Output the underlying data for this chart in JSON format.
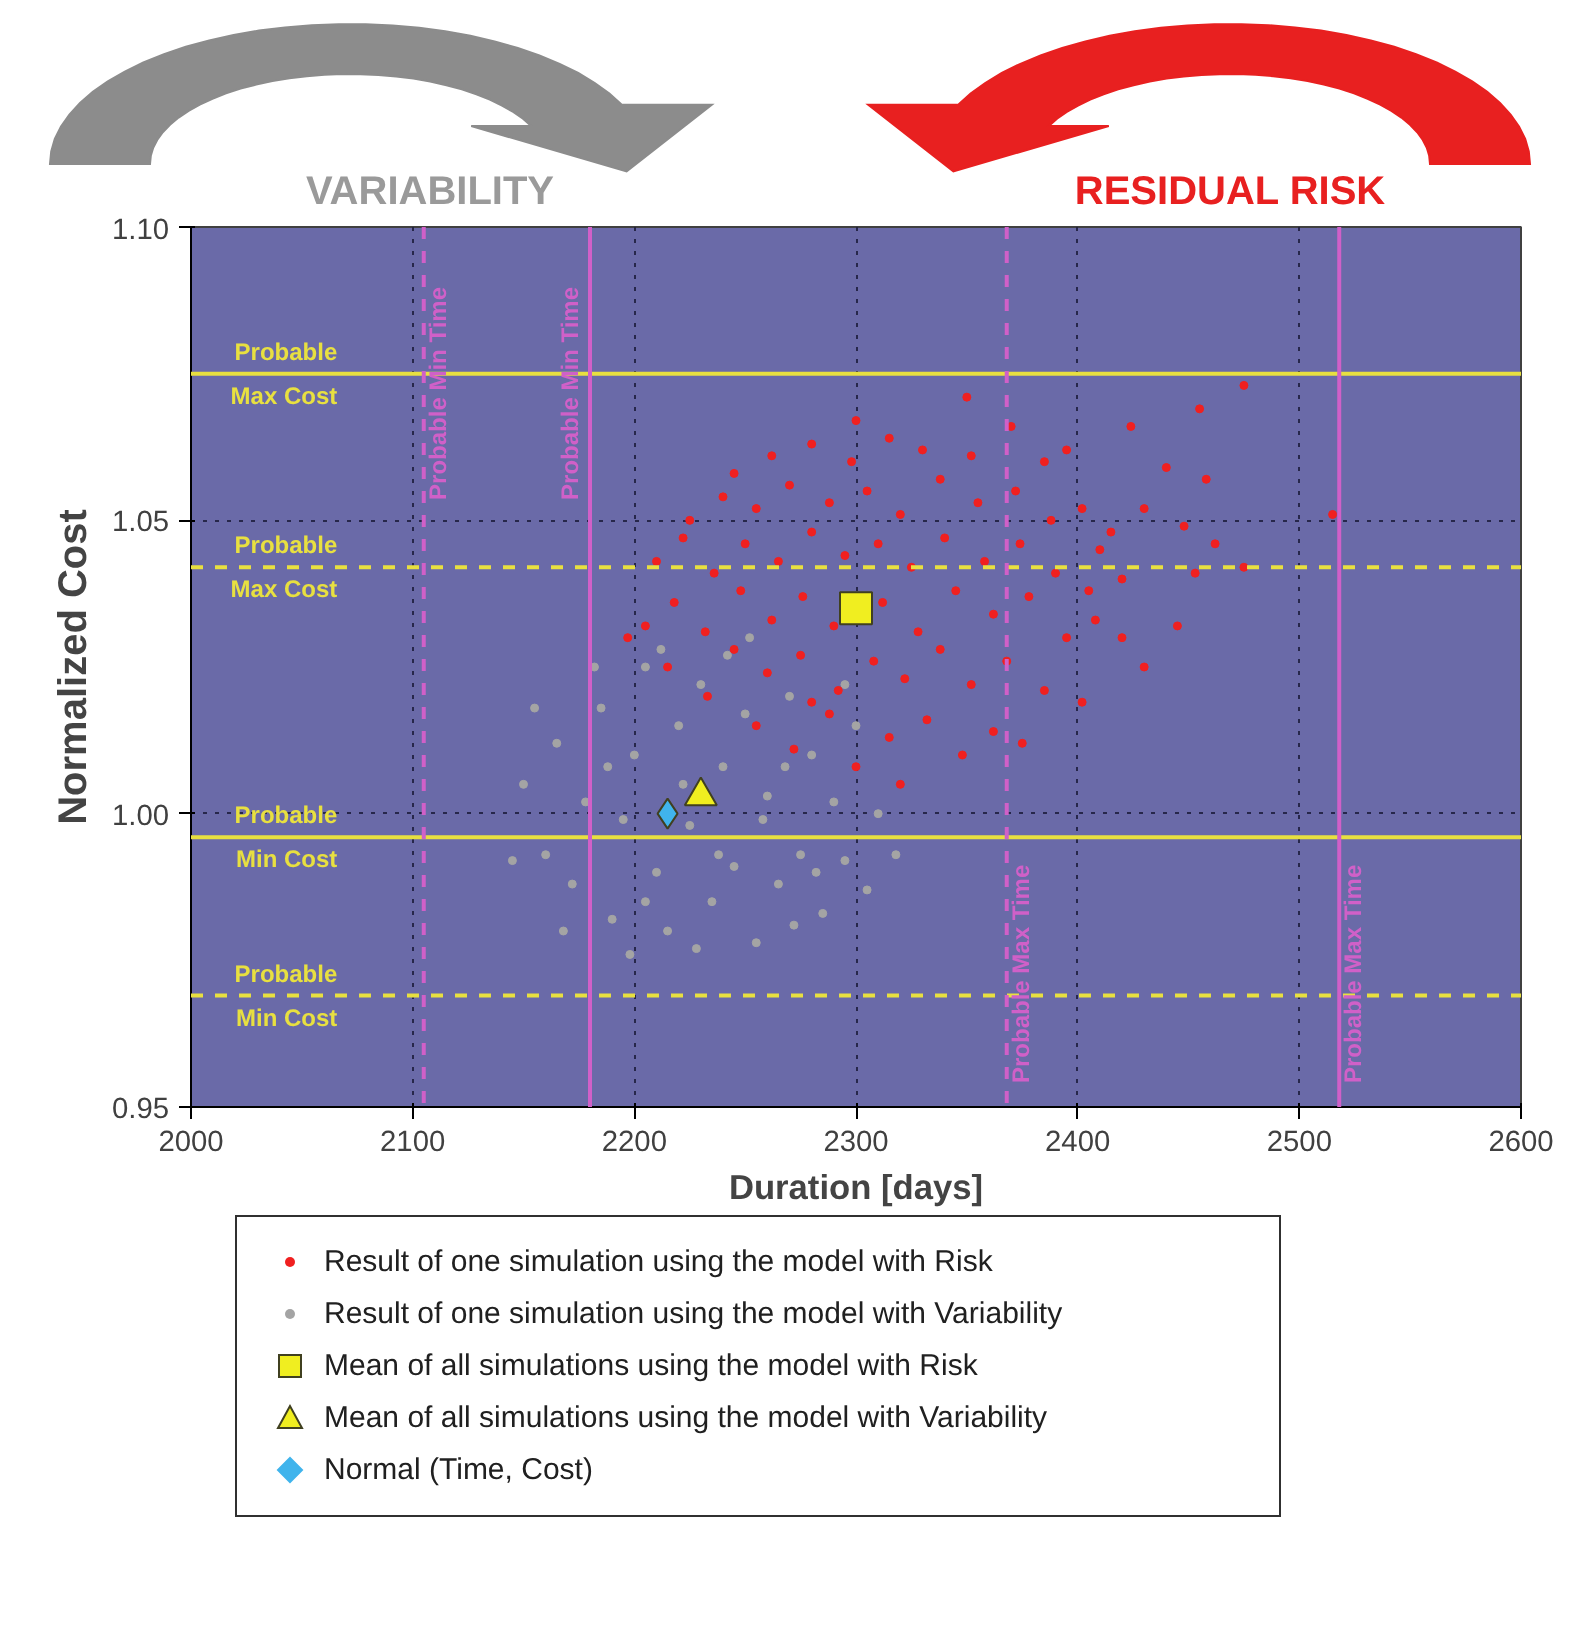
{
  "chart_data": {
    "type": "scatter",
    "xlabel": "Duration [days]",
    "ylabel": "Normalized Cost",
    "annotations": [
      "VARIABILITY",
      "RESIDUAL RISK"
    ],
    "xlim": [
      2000,
      2600
    ],
    "ylim": [
      0.95,
      1.1
    ],
    "xticks": [
      2000,
      2100,
      2200,
      2300,
      2400,
      2500,
      2600
    ],
    "yticks": [
      0.95,
      {
        "value": 1.0,
        "label": "1.00"
      },
      1.05,
      {
        "value": 1.1,
        "label": "1.10"
      }
    ],
    "grid": true,
    "legend": "bottom",
    "series": [
      {
        "name": "Result of one simulation using the model with Risk",
        "color": "#f02020",
        "marker": "circle",
        "x": [
          2245,
          2262,
          2280,
          2298,
          2315,
          2330,
          2352,
          2370,
          2385,
          2300,
          2395,
          2225,
          2240,
          2255,
          2270,
          2288,
          2305,
          2320,
          2338,
          2355,
          2372,
          2388,
          2402,
          2410,
          2210,
          2222,
          2236,
          2250,
          2265,
          2280,
          2295,
          2310,
          2325,
          2340,
          2358,
          2374,
          2390,
          2405,
          2415,
          2205,
          2218,
          2232,
          2248,
          2262,
          2276,
          2290,
          2312,
          2328,
          2345,
          2362,
          2378,
          2395,
          2408,
          2215,
          2233,
          2245,
          2260,
          2275,
          2292,
          2308,
          2322,
          2338,
          2352,
          2368,
          2385,
          2402,
          2255,
          2272,
          2288,
          2300,
          2315,
          2332,
          2348,
          2362,
          2320,
          2280,
          2375,
          2475,
          2455,
          2424,
          2440,
          2458,
          2430,
          2448,
          2462,
          2420,
          2453,
          2475,
          2445,
          2430,
          2515,
          2420,
          2197,
          2350
        ],
        "values": [
          1.058,
          1.061,
          1.063,
          1.06,
          1.064,
          1.062,
          1.061,
          1.066,
          1.06,
          1.067,
          1.062,
          1.05,
          1.054,
          1.052,
          1.056,
          1.053,
          1.055,
          1.051,
          1.057,
          1.053,
          1.055,
          1.05,
          1.052,
          1.045,
          1.043,
          1.047,
          1.041,
          1.046,
          1.043,
          1.048,
          1.044,
          1.046,
          1.042,
          1.047,
          1.043,
          1.046,
          1.041,
          1.038,
          1.048,
          1.032,
          1.036,
          1.031,
          1.038,
          1.033,
          1.037,
          1.032,
          1.036,
          1.031,
          1.038,
          1.034,
          1.037,
          1.03,
          1.033,
          1.025,
          1.02,
          1.028,
          1.024,
          1.027,
          1.021,
          1.026,
          1.023,
          1.028,
          1.022,
          1.026,
          1.021,
          1.019,
          1.015,
          1.011,
          1.017,
          1.008,
          1.013,
          1.016,
          1.01,
          1.014,
          1.005,
          1.019,
          1.012,
          1.073,
          1.069,
          1.066,
          1.059,
          1.057,
          1.052,
          1.049,
          1.046,
          1.04,
          1.041,
          1.042,
          1.032,
          1.025,
          1.051,
          1.03,
          1.03,
          1.071
        ]
      },
      {
        "name": "Result of one simulation using the model with Variability",
        "color": "#a4a4a4",
        "marker": "circle",
        "x": [
          2150,
          2160,
          2165,
          2172,
          2178,
          2185,
          2190,
          2195,
          2200,
          2205,
          2210,
          2215,
          2220,
          2225,
          2230,
          2235,
          2240,
          2245,
          2250,
          2255,
          2260,
          2265,
          2270,
          2275,
          2280,
          2285,
          2290,
          2295,
          2300,
          2305,
          2310,
          2318,
          2145,
          2155,
          2168,
          2182,
          2198,
          2212,
          2228,
          2242,
          2258,
          2272,
          2188,
          2205,
          2222,
          2238,
          2252,
          2268,
          2282,
          2295
        ],
        "values": [
          1.005,
          0.993,
          1.012,
          0.988,
          1.002,
          1.018,
          0.982,
          0.999,
          1.01,
          1.025,
          0.99,
          0.98,
          1.015,
          0.998,
          1.022,
          0.985,
          1.008,
          0.991,
          1.017,
          0.978,
          1.003,
          0.988,
          1.02,
          0.993,
          1.01,
          0.983,
          1.002,
          0.992,
          1.015,
          0.987,
          1.0,
          0.993,
          0.992,
          1.018,
          0.98,
          1.025,
          0.976,
          1.028,
          0.977,
          1.027,
          0.999,
          0.981,
          1.008,
          0.985,
          1.005,
          0.993,
          1.03,
          1.008,
          0.99,
          1.022
        ]
      },
      {
        "name": "Mean of all simulations using the model with Risk",
        "color": "#f0ee20",
        "marker": "square",
        "x": [
          2300
        ],
        "values": [
          1.035
        ]
      },
      {
        "name": "Mean of all simulations using the model with Variability",
        "color": "#f0ee20",
        "marker": "triangle",
        "x": [
          2230
        ],
        "values": [
          1.003
        ]
      },
      {
        "name": "Normal (Time, Cost)",
        "color": "#40b4ec",
        "marker": "diamond",
        "x": [
          2215
        ],
        "values": [
          1.0
        ]
      }
    ],
    "ref_lines": [
      {
        "axis": "y",
        "value": 1.075,
        "label": "Probable Max Cost",
        "color": "#e8e040",
        "line_style": "solid"
      },
      {
        "axis": "y",
        "value": 1.042,
        "label": "Probable Max Cost",
        "color": "#e8e040",
        "line_style": "dashed"
      },
      {
        "axis": "y",
        "value": 0.996,
        "label": "Probable Min Cost",
        "color": "#e8e040",
        "line_style": "solid"
      },
      {
        "axis": "y",
        "value": 0.969,
        "label": "Probable Min Cost",
        "color": "#e8e040",
        "line_style": "dashed"
      },
      {
        "axis": "x",
        "value": 2105,
        "label": "Probable Min Time",
        "color": "#d060c8",
        "line_style": "dashed"
      },
      {
        "axis": "x",
        "value": 2180,
        "label": "Probable Min Time",
        "color": "#d060c8",
        "line_style": "solid"
      },
      {
        "axis": "x",
        "value": 2368,
        "label": "Probable Max Time",
        "color": "#d060c8",
        "line_style": "dashed"
      },
      {
        "axis": "x",
        "value": 2518,
        "label": "Probable Max Time",
        "color": "#d060c8",
        "line_style": "solid"
      }
    ]
  }
}
